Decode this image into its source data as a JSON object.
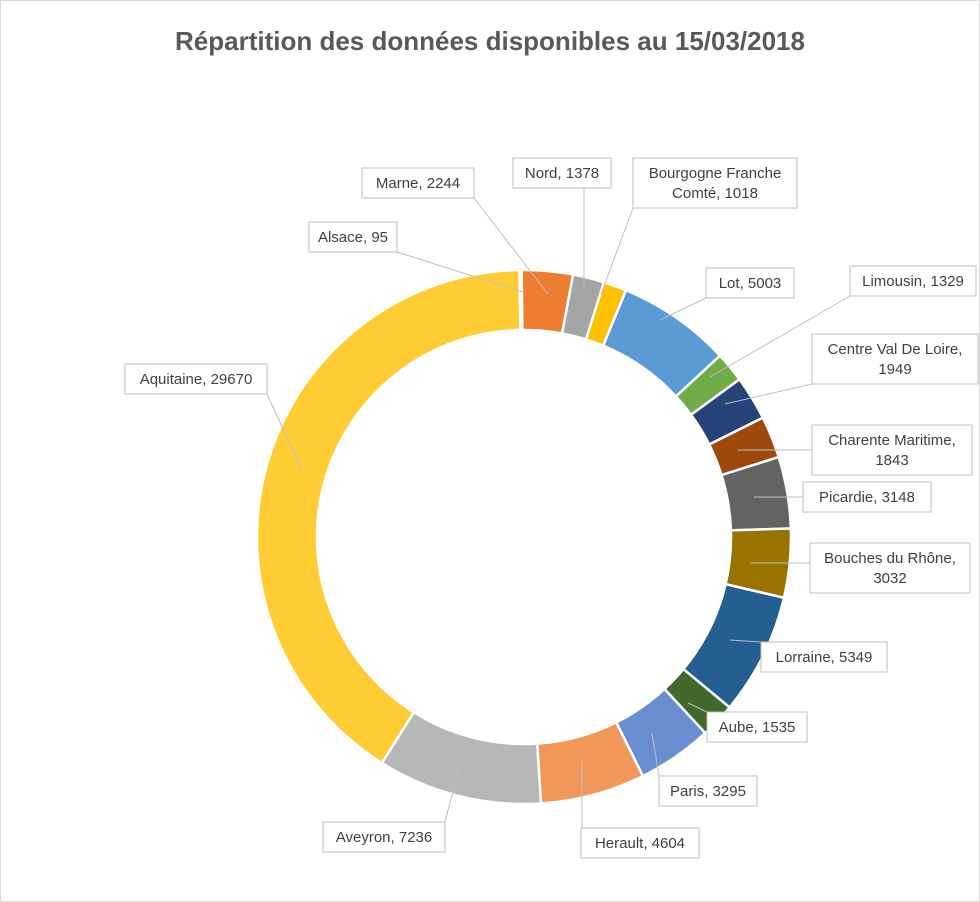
{
  "chart_data": {
    "type": "pie",
    "variant": "doughnut",
    "title": "Répartition des données disponibles au 15/03/2018",
    "legend": "none",
    "slices": [
      {
        "name": "Marne",
        "value": 2244,
        "label_lines": [
          "Marne, 2244"
        ],
        "color": "#ED7D31"
      },
      {
        "name": "Nord",
        "value": 1378,
        "label_lines": [
          "Nord, 1378"
        ],
        "color": "#A5A5A5"
      },
      {
        "name": "Bourgogne Franche Comté",
        "value": 1018,
        "label_lines": [
          "Bourgogne Franche",
          "Comté, 1018"
        ],
        "color": "#FFC000"
      },
      {
        "name": "Lot",
        "value": 5003,
        "label_lines": [
          "Lot, 5003"
        ],
        "color": "#5B9BD5"
      },
      {
        "name": "Limousin",
        "value": 1329,
        "label_lines": [
          "Limousin, 1329"
        ],
        "color": "#70AD47"
      },
      {
        "name": "Centre Val De Loire",
        "value": 1949,
        "label_lines": [
          "Centre Val De Loire,",
          "1949"
        ],
        "color": "#264478"
      },
      {
        "name": "Charente Maritime",
        "value": 1843,
        "label_lines": [
          "Charente Maritime,",
          "1843"
        ],
        "color": "#9E480E"
      },
      {
        "name": "Picardie",
        "value": 3148,
        "label_lines": [
          "Picardie, 3148"
        ],
        "color": "#636363"
      },
      {
        "name": "Bouches du Rhône",
        "value": 3032,
        "label_lines": [
          "Bouches du Rhône,",
          "3032"
        ],
        "color": "#997300"
      },
      {
        "name": "Lorraine",
        "value": 5349,
        "label_lines": [
          "Lorraine, 5349"
        ],
        "color": "#255E91"
      },
      {
        "name": "Aube",
        "value": 1535,
        "label_lines": [
          "Aube, 1535"
        ],
        "color": "#43682B"
      },
      {
        "name": "Paris",
        "value": 3295,
        "label_lines": [
          "Paris, 3295"
        ],
        "color": "#698ED0"
      },
      {
        "name": "Herault",
        "value": 4604,
        "label_lines": [
          "Herault, 4604"
        ],
        "color": "#F1975A"
      },
      {
        "name": "Aveyron",
        "value": 7236,
        "label_lines": [
          "Aveyron, 7236"
        ],
        "color": "#B7B7B7"
      },
      {
        "name": "Aquitaine",
        "value": 29670,
        "label_lines": [
          "Aquitaine, 29670"
        ],
        "color": "#FFCD33"
      },
      {
        "name": "Alsace",
        "value": 95,
        "label_lines": [
          "Alsace, 95"
        ],
        "color": "#4472C4"
      }
    ]
  }
}
